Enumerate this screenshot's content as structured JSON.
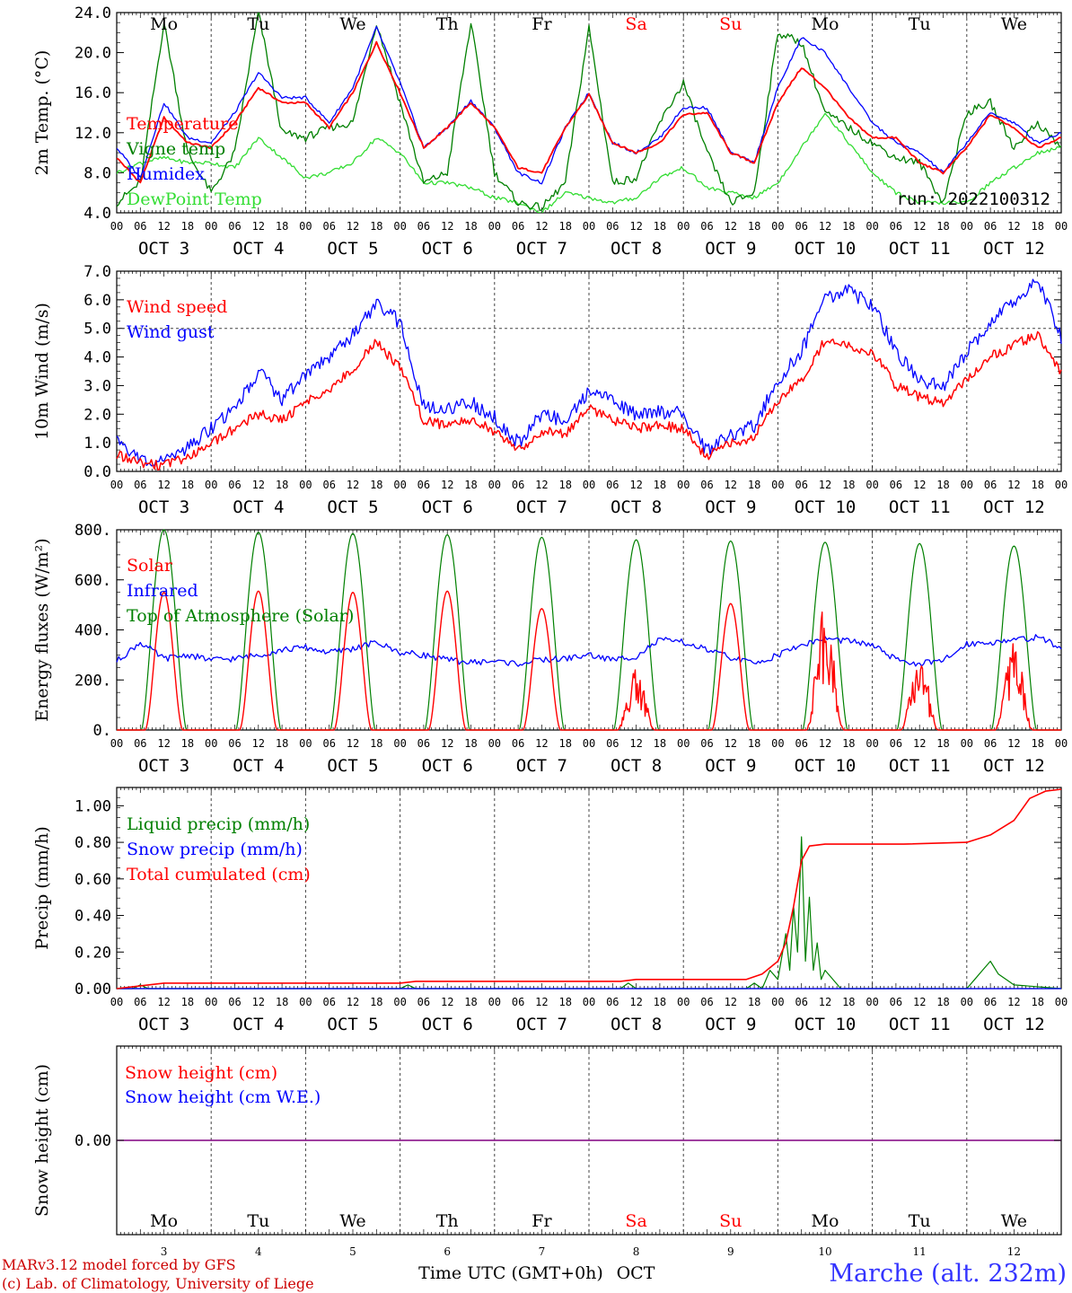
{
  "colors": {
    "red": "#ff0000",
    "blue": "#0000ff",
    "darkgreen": "#008000",
    "lightgreen": "#33dd33",
    "purple": "#800080",
    "axis": "#000000",
    "footer_red": "#cc0000",
    "station_blue": "#3333ff"
  },
  "x_axis": {
    "hour_ticks": [
      "00",
      "06",
      "12",
      "18"
    ],
    "end_tick": "00",
    "date_labels": [
      "OCT  3",
      "OCT  4",
      "OCT  5",
      "OCT  6",
      "OCT  7",
      "OCT  8",
      "OCT  9",
      "OCT 10",
      "OCT 11",
      "OCT 12"
    ],
    "weekdays": [
      {
        "label": "Mo",
        "weekend": false
      },
      {
        "label": "Tu",
        "weekend": false
      },
      {
        "label": "We",
        "weekend": false
      },
      {
        "label": "Th",
        "weekend": false
      },
      {
        "label": "Fr",
        "weekend": false
      },
      {
        "label": "Sa",
        "weekend": true
      },
      {
        "label": "Su",
        "weekend": true
      },
      {
        "label": "Mo",
        "weekend": false
      },
      {
        "label": "Tu",
        "weekend": false
      },
      {
        "label": "We",
        "weekend": false
      }
    ],
    "day_numbers": [
      "3",
      "4",
      "5",
      "6",
      "7",
      "8",
      "9",
      "10",
      "11",
      "12"
    ],
    "title": "Time UTC (GMT+0h)",
    "month": "OCT"
  },
  "footer": {
    "model": "MARv3.12 model forced by GFS",
    "credit": "(c) Lab. of Climatology, University of Liege",
    "station": "Marche (alt. 232m)"
  },
  "chart_data": [
    {
      "type": "line",
      "ylabel": "2m Temp. (°C)",
      "ylim": [
        4,
        24
      ],
      "yticks": [
        "4.0",
        "8.0",
        "12.0",
        "16.0",
        "20.0",
        "24.0"
      ],
      "annotation": "run: 2022100312",
      "x_unit": "hours since OCT 3 00 UTC",
      "series": [
        {
          "name": "Temperature",
          "color": "red",
          "x": [
            0,
            6,
            12,
            18,
            24,
            30,
            36,
            42,
            48,
            54,
            60,
            66,
            72,
            78,
            84,
            90,
            96,
            102,
            108,
            114,
            120,
            126,
            132,
            138,
            144,
            150,
            156,
            162,
            168,
            174,
            180,
            186,
            192,
            198,
            204,
            210,
            216,
            222,
            228,
            234,
            240
          ],
          "y": [
            9.5,
            7.0,
            13.5,
            11.0,
            10.5,
            13.0,
            16.5,
            15.0,
            15.0,
            12.5,
            16.0,
            21.0,
            16.0,
            10.5,
            12.5,
            15.0,
            12.5,
            8.5,
            8.0,
            12.5,
            15.8,
            11.0,
            10.0,
            11.0,
            13.8,
            14.0,
            10.0,
            9.0,
            15.0,
            18.5,
            16.5,
            13.5,
            11.5,
            11.5,
            9.0,
            8.0,
            10.5,
            13.8,
            12.5,
            10.5,
            11.5
          ]
        },
        {
          "name": "Vigne temp",
          "color": "darkgreen",
          "x": [
            0,
            6,
            12,
            18,
            24,
            30,
            36,
            42,
            48,
            54,
            60,
            66,
            72,
            78,
            84,
            90,
            96,
            102,
            108,
            114,
            120,
            126,
            132,
            138,
            144,
            150,
            156,
            162,
            168,
            174,
            180,
            186,
            192,
            198,
            204,
            210,
            216,
            222,
            228,
            234,
            240
          ],
          "y": [
            5.0,
            7.0,
            23.0,
            10.0,
            6.0,
            10.0,
            24.0,
            12.0,
            11.5,
            12.5,
            13.0,
            23.0,
            15.0,
            7.0,
            8.0,
            23.0,
            8.0,
            5.0,
            4.5,
            7.0,
            22.5,
            7.0,
            7.5,
            13.0,
            17.0,
            10.0,
            5.0,
            6.0,
            22.0,
            21.0,
            14.0,
            12.5,
            11.0,
            9.5,
            9.0,
            5.0,
            14.0,
            15.0,
            10.5,
            13.0,
            10.5
          ]
        },
        {
          "name": "Humidex",
          "color": "blue",
          "x": [
            0,
            6,
            12,
            18,
            24,
            30,
            36,
            42,
            48,
            54,
            60,
            66,
            72,
            78,
            84,
            90,
            96,
            102,
            108,
            114,
            120,
            126,
            132,
            138,
            144,
            150,
            156,
            162,
            168,
            174,
            180,
            186,
            192,
            198,
            204,
            210,
            216,
            222,
            228,
            234,
            240
          ],
          "y": [
            10.5,
            7.5,
            15.0,
            11.5,
            11.0,
            14.0,
            18.0,
            15.5,
            15.5,
            13.0,
            16.5,
            22.5,
            17.0,
            10.5,
            12.5,
            15.2,
            12.5,
            8.0,
            7.0,
            12.5,
            16.0,
            11.0,
            10.0,
            11.5,
            14.5,
            14.5,
            10.0,
            9.0,
            16.5,
            21.5,
            20.0,
            16.5,
            13.0,
            11.0,
            10.0,
            8.0,
            11.0,
            14.0,
            13.0,
            11.0,
            12.0
          ]
        },
        {
          "name": "DewPoint Temp",
          "color": "lightgreen",
          "x": [
            0,
            6,
            12,
            18,
            24,
            30,
            36,
            42,
            48,
            54,
            60,
            66,
            72,
            78,
            84,
            90,
            96,
            102,
            108,
            114,
            120,
            126,
            132,
            138,
            144,
            150,
            156,
            162,
            168,
            174,
            180,
            186,
            192,
            198,
            204,
            210,
            216,
            222,
            228,
            234,
            240
          ],
          "y": [
            8.0,
            9.0,
            9.5,
            9.0,
            9.0,
            8.5,
            11.5,
            9.5,
            7.5,
            8.0,
            9.0,
            11.5,
            10.0,
            7.0,
            7.0,
            6.5,
            5.5,
            5.0,
            4.0,
            6.0,
            5.5,
            5.0,
            5.5,
            7.5,
            8.5,
            6.5,
            6.0,
            5.5,
            7.0,
            10.5,
            14.0,
            11.0,
            8.0,
            6.0,
            5.0,
            5.0,
            5.0,
            7.0,
            8.5,
            10.0,
            10.5
          ]
        }
      ]
    },
    {
      "type": "line",
      "ylabel": "10m Wind (m/s)",
      "ylim": [
        0,
        7
      ],
      "yticks": [
        "0.0",
        "1.0",
        "2.0",
        "3.0",
        "4.0",
        "5.0",
        "6.0",
        "7.0"
      ],
      "reference_line": 5.0,
      "x_unit": "hours since OCT 3 00 UTC",
      "series": [
        {
          "name": "Wind speed",
          "color": "red",
          "x": [
            0,
            6,
            12,
            18,
            24,
            30,
            36,
            42,
            48,
            54,
            60,
            66,
            72,
            78,
            84,
            90,
            96,
            102,
            108,
            114,
            120,
            126,
            132,
            138,
            144,
            150,
            156,
            162,
            168,
            174,
            180,
            186,
            192,
            198,
            204,
            210,
            216,
            222,
            228,
            234,
            240
          ],
          "y": [
            0.6,
            0.3,
            0.2,
            0.5,
            1.0,
            1.5,
            2.0,
            1.8,
            2.4,
            2.9,
            3.6,
            4.5,
            3.6,
            1.8,
            1.6,
            1.8,
            1.4,
            0.7,
            1.4,
            1.3,
            2.2,
            1.8,
            1.5,
            1.6,
            1.5,
            0.5,
            1.0,
            1.2,
            2.5,
            3.2,
            4.6,
            4.4,
            4.2,
            3.0,
            2.6,
            2.4,
            3.2,
            4.0,
            4.4,
            4.8,
            3.5
          ]
        },
        {
          "name": "Wind gust",
          "color": "blue",
          "x": [
            0,
            6,
            12,
            18,
            24,
            30,
            36,
            42,
            48,
            54,
            60,
            66,
            72,
            78,
            84,
            90,
            96,
            102,
            108,
            114,
            120,
            126,
            132,
            138,
            144,
            150,
            156,
            162,
            168,
            174,
            180,
            186,
            192,
            198,
            204,
            210,
            216,
            222,
            228,
            234,
            240
          ],
          "y": [
            1.0,
            0.4,
            0.3,
            0.8,
            1.5,
            2.2,
            3.5,
            2.5,
            3.4,
            4.0,
            4.8,
            5.9,
            5.2,
            2.3,
            2.2,
            2.4,
            1.9,
            1.0,
            2.0,
            1.8,
            2.8,
            2.5,
            2.0,
            2.1,
            2.0,
            0.7,
            1.3,
            1.6,
            3.2,
            4.2,
            6.0,
            6.3,
            5.8,
            4.2,
            3.2,
            3.0,
            4.2,
            5.2,
            6.0,
            6.7,
            4.7
          ]
        }
      ]
    },
    {
      "type": "line",
      "ylabel": "Energy fluxes (W/m²)",
      "ylim": [
        0,
        800
      ],
      "yticks": [
        "0.",
        "200.",
        "400.",
        "600.",
        "800."
      ],
      "x_unit": "hours since OCT 3 00 UTC",
      "daily_peaks": {
        "toa_solar": [
          800,
          790,
          785,
          780,
          770,
          760,
          755,
          750,
          745,
          735
        ],
        "solar": [
          550,
          555,
          550,
          555,
          485,
          250,
          505,
          500,
          300,
          380
        ]
      },
      "series": [
        {
          "name": "Solar",
          "color": "red"
        },
        {
          "name": "Infrared",
          "color": "blue",
          "x": [
            0,
            6,
            12,
            18,
            24,
            30,
            36,
            42,
            48,
            54,
            60,
            66,
            72,
            78,
            84,
            90,
            96,
            102,
            108,
            114,
            120,
            126,
            132,
            138,
            144,
            150,
            156,
            162,
            168,
            174,
            180,
            186,
            192,
            198,
            204,
            210,
            216,
            222,
            228,
            234,
            240
          ],
          "y": [
            275,
            350,
            285,
            300,
            280,
            285,
            300,
            320,
            330,
            310,
            325,
            350,
            310,
            300,
            280,
            270,
            275,
            265,
            280,
            285,
            300,
            280,
            295,
            360,
            350,
            320,
            290,
            265,
            300,
            340,
            365,
            355,
            340,
            280,
            265,
            275,
            345,
            350,
            360,
            370,
            330
          ]
        },
        {
          "name": "Top of Atmosphere (Solar)",
          "color": "darkgreen"
        }
      ]
    },
    {
      "type": "line",
      "ylabel": "Precip (mm/h)",
      "ylim": [
        0,
        1.1
      ],
      "yticks": [
        "0.00",
        "0.20",
        "0.40",
        "0.60",
        "0.80",
        "1.00"
      ],
      "x_unit": "hours since OCT 3 00 UTC",
      "series": [
        {
          "name": "Liquid precip (mm/h)",
          "color": "darkgreen",
          "x": [
            0,
            4,
            6,
            8,
            12,
            60,
            72,
            74,
            76,
            84,
            128,
            130,
            132,
            134,
            160,
            162,
            164,
            166,
            168,
            170,
            171,
            172,
            173,
            174,
            175,
            176,
            177,
            178,
            179,
            180,
            184,
            200,
            216,
            218,
            220,
            222,
            224,
            226,
            228,
            240
          ],
          "y": [
            0,
            0,
            0.02,
            0,
            0,
            0,
            0,
            0.02,
            0,
            0,
            0,
            0.03,
            0,
            0,
            0,
            0.03,
            0,
            0.1,
            0.05,
            0.3,
            0.1,
            0.45,
            0.2,
            0.83,
            0.15,
            0.5,
            0.1,
            0.25,
            0.05,
            0.1,
            0,
            0,
            0,
            0.05,
            0.1,
            0.15,
            0.08,
            0.05,
            0.02,
            0
          ]
        },
        {
          "name": "Snow precip (mm/h)",
          "color": "blue",
          "x": [
            0,
            240
          ],
          "y": [
            0,
            0
          ]
        },
        {
          "name": "Total cumulated (cm)",
          "color": "red",
          "x": [
            0,
            8,
            12,
            72,
            76,
            84,
            128,
            132,
            160,
            164,
            168,
            170,
            172,
            174,
            176,
            180,
            190,
            200,
            216,
            222,
            228,
            232,
            236,
            240
          ],
          "y": [
            0,
            0.02,
            0.03,
            0.03,
            0.04,
            0.04,
            0.04,
            0.05,
            0.05,
            0.08,
            0.15,
            0.25,
            0.45,
            0.7,
            0.78,
            0.79,
            0.79,
            0.79,
            0.8,
            0.84,
            0.92,
            1.04,
            1.08,
            1.09
          ]
        }
      ]
    },
    {
      "type": "line",
      "ylabel": "Snow height (cm)",
      "yticks": [
        "0.00"
      ],
      "x_unit": "hours since OCT 3 00 UTC",
      "series": [
        {
          "name": "Snow height (cm)",
          "color": "red",
          "x": [
            0,
            240
          ],
          "y": [
            0,
            0
          ]
        },
        {
          "name": "Snow height (cm W.E.)",
          "color": "blue",
          "x": [
            0,
            240
          ],
          "y": [
            0,
            0
          ]
        }
      ]
    }
  ]
}
